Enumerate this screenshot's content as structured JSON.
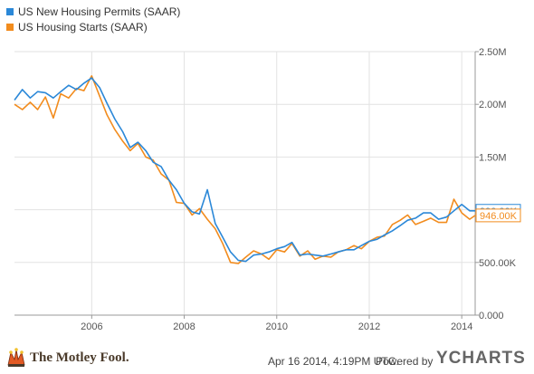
{
  "legend": [
    {
      "name": "US New Housing Permits (SAAR)",
      "color": "#2b88d8"
    },
    {
      "name": "US Housing Starts (SAAR)",
      "color": "#f28c1e"
    }
  ],
  "footer": {
    "brand": "The Motley Fool.",
    "brand_icon": "jester-hat-icon",
    "timestamp": "Apr 16 2014, 4:19PM UTC.",
    "powered_by": "Powered by",
    "ycharts": "YCHARTS"
  },
  "chart_data": {
    "type": "line",
    "xlim": [
      2004.33,
      2014.29
    ],
    "ylim": [
      0,
      2500000
    ],
    "x_ticks": [
      2006,
      2008,
      2010,
      2012,
      2014
    ],
    "x_tick_labels": [
      "2006",
      "2008",
      "2010",
      "2012",
      "2014"
    ],
    "y_ticks": [
      0,
      500000,
      1000000,
      1500000,
      2000000,
      2500000
    ],
    "y_tick_labels": [
      "0.000",
      "500.00K",
      "1.00M",
      "1.50M",
      "2.00M",
      "2.50M"
    ],
    "grid": true,
    "legend_position": "top-left",
    "series": [
      {
        "name": "US New Housing Permits (SAAR)",
        "color": "#2b88d8",
        "last_value_label": "990.00K",
        "last_value": 990000,
        "points": [
          [
            2004.33,
            2040000
          ],
          [
            2004.5,
            2140000
          ],
          [
            2004.67,
            2060000
          ],
          [
            2004.83,
            2120000
          ],
          [
            2005.0,
            2110000
          ],
          [
            2005.17,
            2060000
          ],
          [
            2005.33,
            2120000
          ],
          [
            2005.5,
            2180000
          ],
          [
            2005.67,
            2140000
          ],
          [
            2005.83,
            2200000
          ],
          [
            2006.0,
            2250000
          ],
          [
            2006.17,
            2160000
          ],
          [
            2006.33,
            2010000
          ],
          [
            2006.5,
            1860000
          ],
          [
            2006.67,
            1740000
          ],
          [
            2006.83,
            1590000
          ],
          [
            2007.0,
            1640000
          ],
          [
            2007.17,
            1560000
          ],
          [
            2007.33,
            1450000
          ],
          [
            2007.5,
            1410000
          ],
          [
            2007.67,
            1280000
          ],
          [
            2007.83,
            1190000
          ],
          [
            2008.0,
            1060000
          ],
          [
            2008.17,
            980000
          ],
          [
            2008.33,
            960000
          ],
          [
            2008.5,
            1190000
          ],
          [
            2008.67,
            870000
          ],
          [
            2008.83,
            740000
          ],
          [
            2009.0,
            600000
          ],
          [
            2009.17,
            520000
          ],
          [
            2009.33,
            510000
          ],
          [
            2009.5,
            570000
          ],
          [
            2009.67,
            580000
          ],
          [
            2009.83,
            600000
          ],
          [
            2010.0,
            630000
          ],
          [
            2010.17,
            650000
          ],
          [
            2010.33,
            690000
          ],
          [
            2010.5,
            570000
          ],
          [
            2010.67,
            580000
          ],
          [
            2010.83,
            570000
          ],
          [
            2011.0,
            560000
          ],
          [
            2011.17,
            580000
          ],
          [
            2011.33,
            600000
          ],
          [
            2011.5,
            620000
          ],
          [
            2011.67,
            620000
          ],
          [
            2011.83,
            660000
          ],
          [
            2012.0,
            700000
          ],
          [
            2012.17,
            720000
          ],
          [
            2012.33,
            760000
          ],
          [
            2012.5,
            800000
          ],
          [
            2012.67,
            850000
          ],
          [
            2012.83,
            900000
          ],
          [
            2013.0,
            920000
          ],
          [
            2013.17,
            970000
          ],
          [
            2013.33,
            970000
          ],
          [
            2013.5,
            910000
          ],
          [
            2013.67,
            930000
          ],
          [
            2013.83,
            990000
          ],
          [
            2014.0,
            1050000
          ],
          [
            2014.17,
            990000
          ],
          [
            2014.29,
            990000
          ]
        ]
      },
      {
        "name": "US Housing Starts (SAAR)",
        "color": "#f28c1e",
        "last_value_label": "946.00K",
        "last_value": 946000,
        "points": [
          [
            2004.33,
            2000000
          ],
          [
            2004.5,
            1950000
          ],
          [
            2004.67,
            2020000
          ],
          [
            2004.83,
            1950000
          ],
          [
            2005.0,
            2070000
          ],
          [
            2005.17,
            1870000
          ],
          [
            2005.33,
            2100000
          ],
          [
            2005.5,
            2060000
          ],
          [
            2005.67,
            2150000
          ],
          [
            2005.83,
            2130000
          ],
          [
            2006.0,
            2270000
          ],
          [
            2006.17,
            2080000
          ],
          [
            2006.33,
            1900000
          ],
          [
            2006.5,
            1760000
          ],
          [
            2006.67,
            1650000
          ],
          [
            2006.83,
            1560000
          ],
          [
            2007.0,
            1630000
          ],
          [
            2007.17,
            1500000
          ],
          [
            2007.33,
            1470000
          ],
          [
            2007.5,
            1340000
          ],
          [
            2007.67,
            1280000
          ],
          [
            2007.83,
            1070000
          ],
          [
            2008.0,
            1060000
          ],
          [
            2008.17,
            950000
          ],
          [
            2008.33,
            1010000
          ],
          [
            2008.5,
            910000
          ],
          [
            2008.67,
            820000
          ],
          [
            2008.83,
            680000
          ],
          [
            2009.0,
            500000
          ],
          [
            2009.17,
            490000
          ],
          [
            2009.33,
            550000
          ],
          [
            2009.5,
            610000
          ],
          [
            2009.67,
            580000
          ],
          [
            2009.83,
            530000
          ],
          [
            2010.0,
            620000
          ],
          [
            2010.17,
            600000
          ],
          [
            2010.33,
            680000
          ],
          [
            2010.5,
            560000
          ],
          [
            2010.67,
            610000
          ],
          [
            2010.83,
            530000
          ],
          [
            2011.0,
            560000
          ],
          [
            2011.17,
            550000
          ],
          [
            2011.33,
            600000
          ],
          [
            2011.5,
            620000
          ],
          [
            2011.67,
            660000
          ],
          [
            2011.83,
            630000
          ],
          [
            2012.0,
            700000
          ],
          [
            2012.17,
            740000
          ],
          [
            2012.33,
            750000
          ],
          [
            2012.5,
            860000
          ],
          [
            2012.67,
            900000
          ],
          [
            2012.83,
            950000
          ],
          [
            2013.0,
            860000
          ],
          [
            2013.17,
            890000
          ],
          [
            2013.33,
            920000
          ],
          [
            2013.5,
            880000
          ],
          [
            2013.67,
            880000
          ],
          [
            2013.83,
            1100000
          ],
          [
            2014.0,
            970000
          ],
          [
            2014.17,
            910000
          ],
          [
            2014.29,
            946000
          ]
        ]
      }
    ]
  }
}
